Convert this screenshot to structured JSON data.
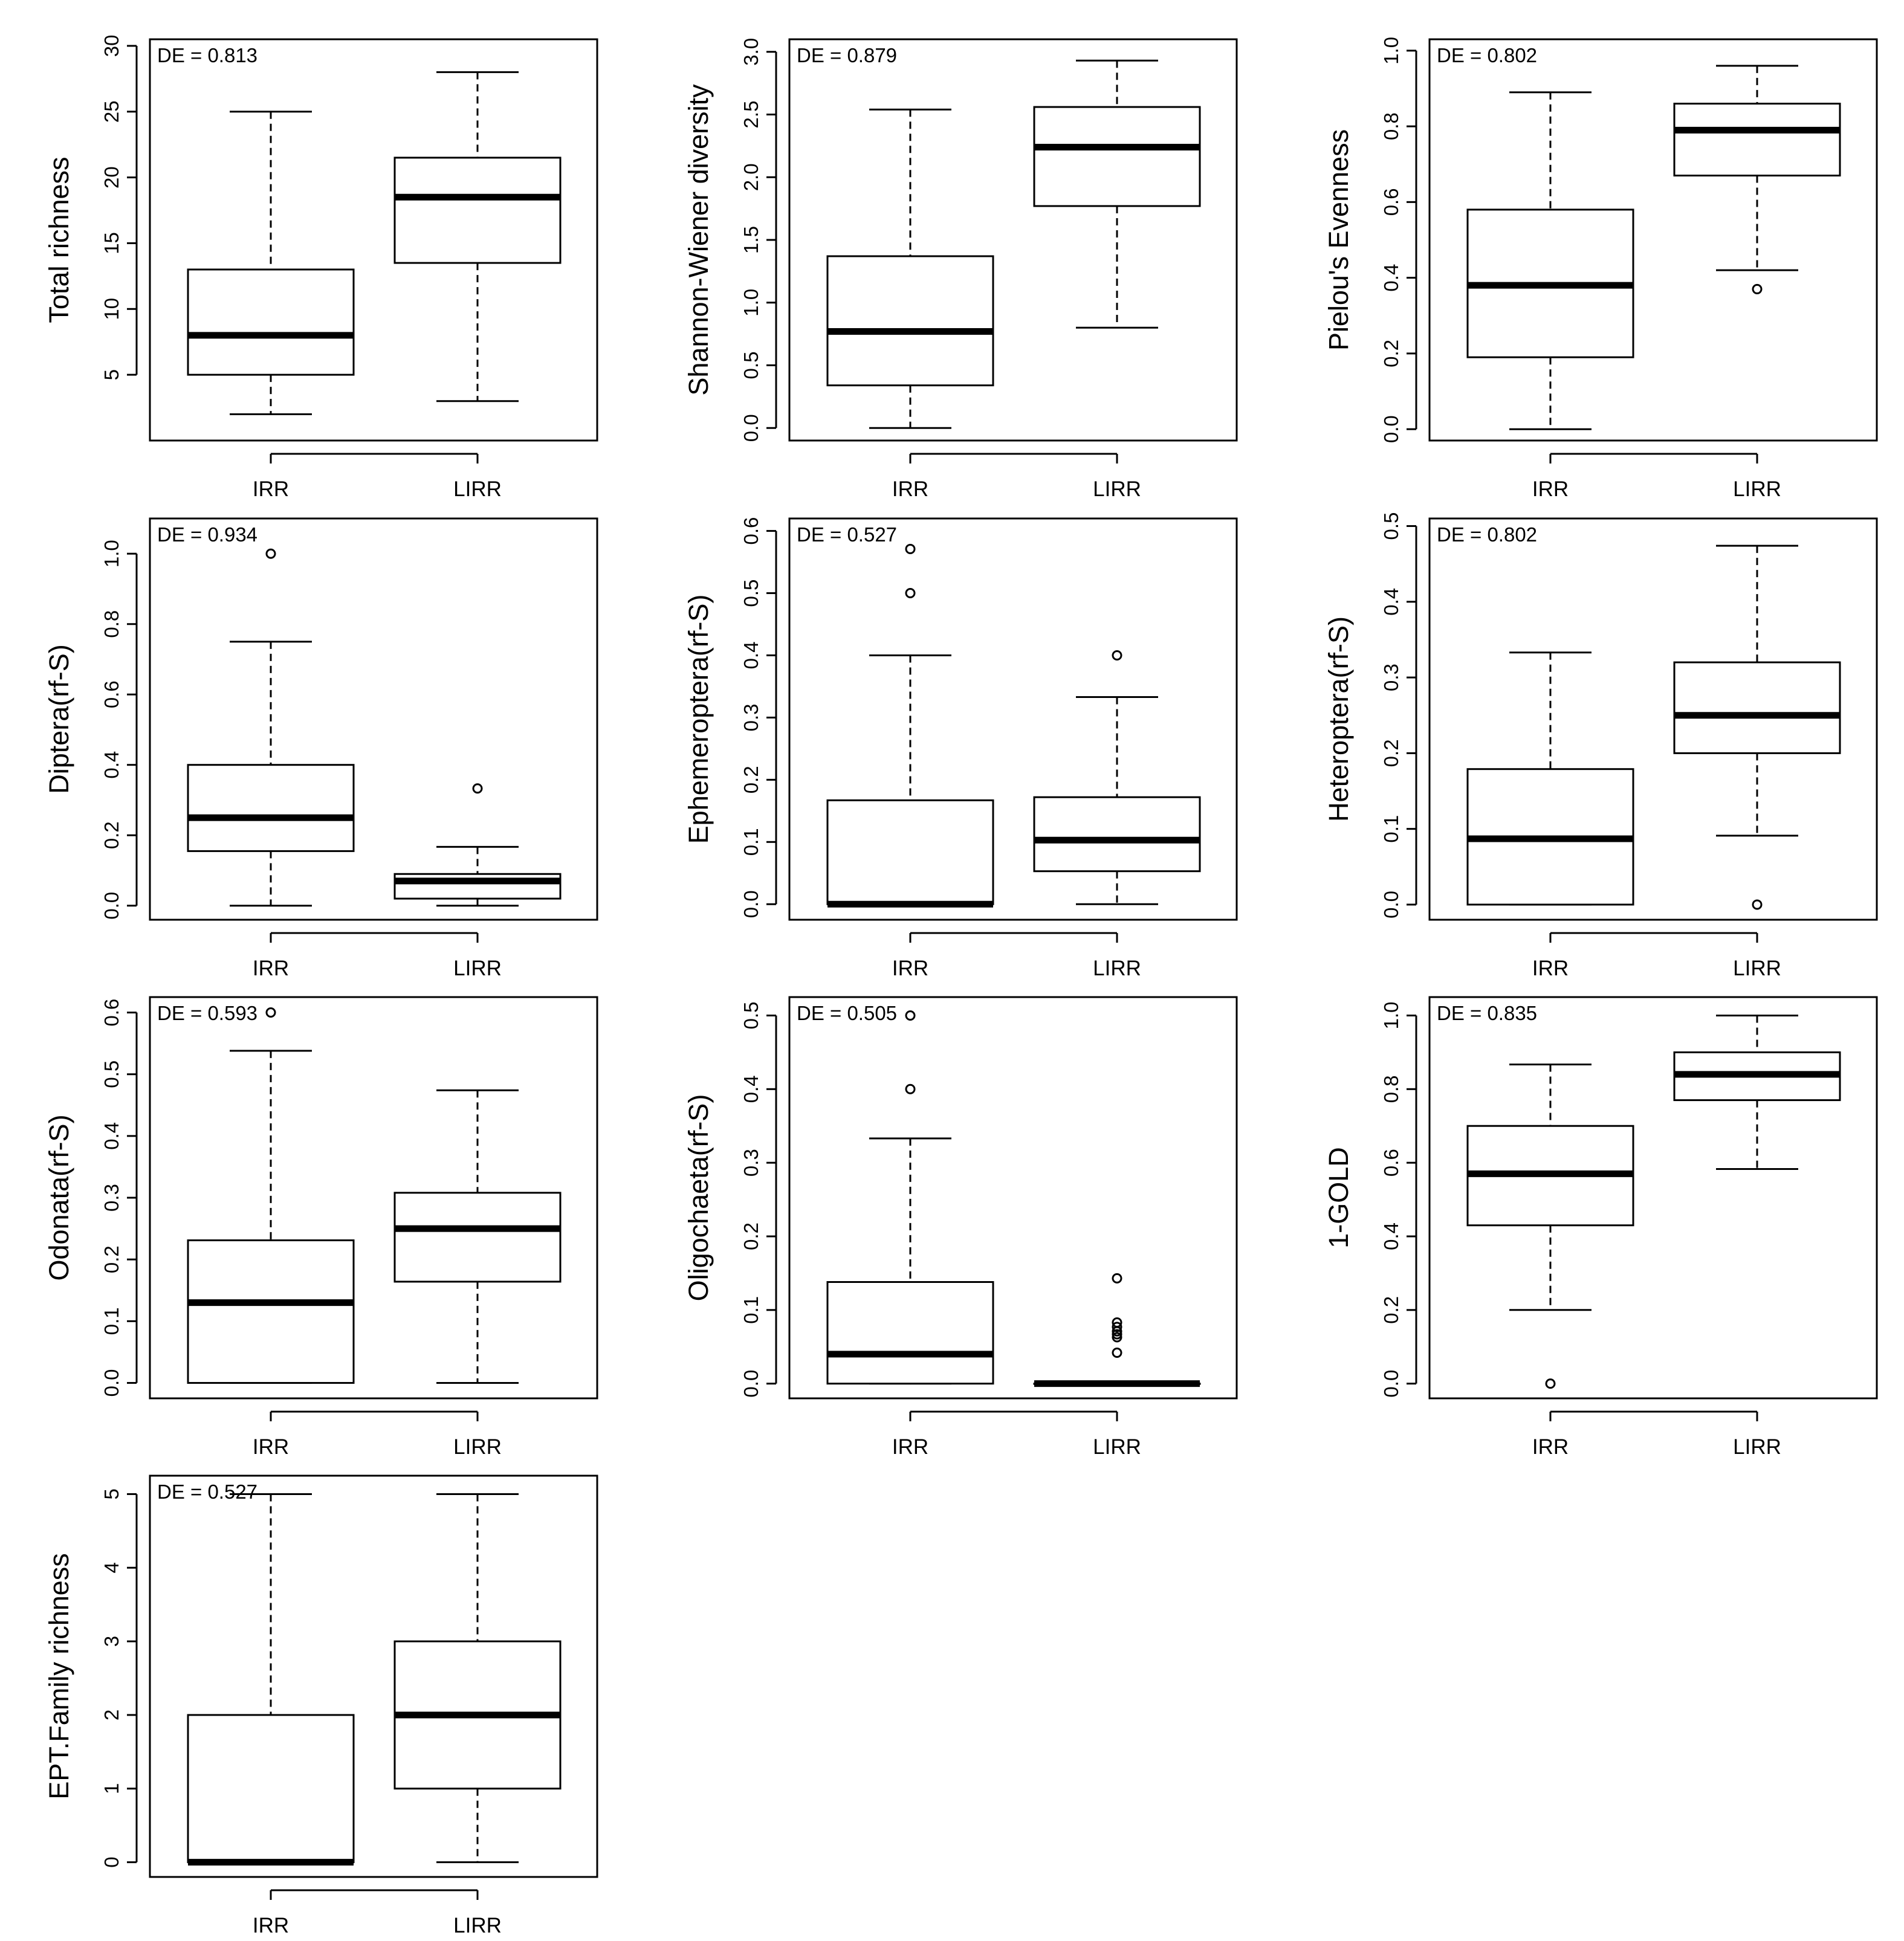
{
  "chart_data": [
    {
      "type": "boxplot",
      "title": "",
      "ylabel": "Total richness",
      "annotation": "DE = 0.813",
      "categories": [
        "IRR",
        "LIRR"
      ],
      "ylim": [
        0,
        30.5
      ],
      "yticks": [
        5,
        10,
        15,
        20,
        25,
        30
      ],
      "ytick_labels": [
        "5",
        "10",
        "15",
        "20",
        "25",
        "30"
      ],
      "boxes": [
        {
          "name": "IRR",
          "whislo": 2,
          "q1": 5,
          "med": 8,
          "q3": 13,
          "whishi": 25,
          "fliers": []
        },
        {
          "name": "LIRR",
          "whislo": 3,
          "q1": 13.5,
          "med": 18.5,
          "q3": 21.5,
          "whishi": 28,
          "fliers": []
        }
      ]
    },
    {
      "type": "boxplot",
      "title": "",
      "ylabel": "Shannon-Wiener diversity",
      "annotation": "DE = 0.879",
      "categories": [
        "IRR",
        "LIRR"
      ],
      "ylim": [
        -0.1,
        3.1
      ],
      "yticks": [
        0,
        0.5,
        1,
        1.5,
        2,
        2.5,
        3
      ],
      "ytick_labels": [
        "0.0",
        "0.5",
        "1.0",
        "1.5",
        "2.0",
        "2.5",
        "3.0"
      ],
      "boxes": [
        {
          "name": "IRR",
          "whislo": 0,
          "q1": 0.34,
          "med": 0.77,
          "q3": 1.37,
          "whishi": 2.54,
          "fliers": []
        },
        {
          "name": "LIRR",
          "whislo": 0.8,
          "q1": 1.77,
          "med": 2.24,
          "q3": 2.56,
          "whishi": 2.93,
          "fliers": []
        }
      ]
    },
    {
      "type": "boxplot",
      "title": "",
      "ylabel": "Pielou's Evenness",
      "annotation": "DE = 0.802",
      "categories": [
        "IRR",
        "LIRR"
      ],
      "ylim": [
        -0.03,
        1.03
      ],
      "yticks": [
        0,
        0.2,
        0.4,
        0.6,
        0.8,
        1
      ],
      "ytick_labels": [
        "0.0",
        "0.2",
        "0.4",
        "0.6",
        "0.8",
        "1.0"
      ],
      "boxes": [
        {
          "name": "IRR",
          "whislo": 0,
          "q1": 0.19,
          "med": 0.38,
          "q3": 0.58,
          "whishi": 0.89,
          "fliers": []
        },
        {
          "name": "LIRR",
          "whislo": 0.42,
          "q1": 0.67,
          "med": 0.79,
          "q3": 0.86,
          "whishi": 0.96,
          "fliers": [
            0.37
          ]
        }
      ]
    },
    {
      "type": "boxplot",
      "title": "",
      "ylabel": "Diptera(rf-S)",
      "annotation": "DE = 0.934",
      "categories": [
        "IRR",
        "LIRR"
      ],
      "ylim": [
        -0.04,
        1.1
      ],
      "yticks": [
        0,
        0.2,
        0.4,
        0.6,
        0.8,
        1
      ],
      "ytick_labels": [
        "0.0",
        "0.2",
        "0.4",
        "0.6",
        "0.8",
        "1.0"
      ],
      "boxes": [
        {
          "name": "IRR",
          "whislo": 0,
          "q1": 0.155,
          "med": 0.25,
          "q3": 0.4,
          "whishi": 0.75,
          "fliers": [
            1.0
          ]
        },
        {
          "name": "LIRR",
          "whislo": 0,
          "q1": 0.02,
          "med": 0.07,
          "q3": 0.09,
          "whishi": 0.167,
          "fliers": [
            0.333
          ]
        }
      ]
    },
    {
      "type": "boxplot",
      "title": "",
      "ylabel": "Ephemeroptera(rf-S)",
      "annotation": "DE = 0.527",
      "categories": [
        "IRR",
        "LIRR"
      ],
      "ylim": [
        -0.025,
        0.62
      ],
      "yticks": [
        0,
        0.1,
        0.2,
        0.3,
        0.4,
        0.5,
        0.6
      ],
      "ytick_labels": [
        "0.0",
        "0.1",
        "0.2",
        "0.3",
        "0.4",
        "0.5",
        "0.6"
      ],
      "boxes": [
        {
          "name": "IRR",
          "whislo": 0,
          "q1": 0,
          "med": 0,
          "q3": 0.167,
          "whishi": 0.4,
          "fliers": [
            0.5,
            0.571
          ]
        },
        {
          "name": "LIRR",
          "whislo": 0,
          "q1": 0.053,
          "med": 0.103,
          "q3": 0.172,
          "whishi": 0.333,
          "fliers": [
            0.4
          ]
        }
      ]
    },
    {
      "type": "boxplot",
      "title": "",
      "ylabel": "Heteroptera(rf-S)",
      "annotation": "DE = 0.802",
      "categories": [
        "IRR",
        "LIRR"
      ],
      "ylim": [
        -0.02,
        0.51
      ],
      "yticks": [
        0,
        0.1,
        0.2,
        0.3,
        0.4,
        0.5
      ],
      "ytick_labels": [
        "0.0",
        "0.1",
        "0.2",
        "0.3",
        "0.4",
        "0.5"
      ],
      "boxes": [
        {
          "name": "IRR",
          "whislo": 0,
          "q1": 0,
          "med": 0.087,
          "q3": 0.179,
          "whishi": 0.333,
          "fliers": []
        },
        {
          "name": "LIRR",
          "whislo": 0.091,
          "q1": 0.2,
          "med": 0.25,
          "q3": 0.32,
          "whishi": 0.474,
          "fliers": [
            0
          ]
        }
      ]
    },
    {
      "type": "boxplot",
      "title": "",
      "ylabel": "Odonata(rf-S)",
      "annotation": "DE = 0.593",
      "categories": [
        "IRR",
        "LIRR"
      ],
      "ylim": [
        -0.025,
        0.625
      ],
      "yticks": [
        0,
        0.1,
        0.2,
        0.3,
        0.4,
        0.5,
        0.6
      ],
      "ytick_labels": [
        "0.0",
        "0.1",
        "0.2",
        "0.3",
        "0.4",
        "0.5",
        "0.6"
      ],
      "boxes": [
        {
          "name": "IRR",
          "whislo": 0,
          "q1": 0,
          "med": 0.13,
          "q3": 0.231,
          "whishi": 0.538,
          "fliers": [
            0.6
          ]
        },
        {
          "name": "LIRR",
          "whislo": 0,
          "q1": 0.164,
          "med": 0.25,
          "q3": 0.308,
          "whishi": 0.474,
          "fliers": []
        }
      ]
    },
    {
      "type": "boxplot",
      "title": "",
      "ylabel": "Oligochaeta(rf-S)",
      "annotation": "DE = 0.505",
      "categories": [
        "IRR",
        "LIRR"
      ],
      "ylim": [
        -0.02,
        0.525
      ],
      "yticks": [
        0,
        0.1,
        0.2,
        0.3,
        0.4,
        0.5
      ],
      "ytick_labels": [
        "0.0",
        "0.1",
        "0.2",
        "0.3",
        "0.4",
        "0.5"
      ],
      "boxes": [
        {
          "name": "IRR",
          "whislo": 0,
          "q1": 0,
          "med": 0.04,
          "q3": 0.138,
          "whishi": 0.333,
          "fliers": [
            0.4,
            0.5
          ]
        },
        {
          "name": "LIRR",
          "whislo": 0,
          "q1": 0,
          "med": 0,
          "q3": 0,
          "whishi": 0,
          "fliers": [
            0.042,
            0.063,
            0.067,
            0.071,
            0.077,
            0.083,
            0.143
          ]
        }
      ]
    },
    {
      "type": "boxplot",
      "title": "",
      "ylabel": "1-GOLD",
      "annotation": "DE = 0.835",
      "categories": [
        "IRR",
        "LIRR"
      ],
      "ylim": [
        -0.04,
        1.05
      ],
      "yticks": [
        0,
        0.2,
        0.4,
        0.6,
        0.8,
        1
      ],
      "ytick_labels": [
        "0.0",
        "0.2",
        "0.4",
        "0.6",
        "0.8",
        "1.0"
      ],
      "boxes": [
        {
          "name": "IRR",
          "whislo": 0.2,
          "q1": 0.43,
          "med": 0.57,
          "q3": 0.7,
          "whishi": 0.867,
          "fliers": [
            0
          ]
        },
        {
          "name": "LIRR",
          "whislo": 0.583,
          "q1": 0.77,
          "med": 0.84,
          "q3": 0.9,
          "whishi": 1.0,
          "fliers": []
        }
      ]
    },
    {
      "type": "boxplot",
      "title": "",
      "ylabel": "EPT.Family richness",
      "annotation": "DE = 0.527",
      "categories": [
        "IRR",
        "LIRR"
      ],
      "ylim": [
        -0.2,
        5.25
      ],
      "yticks": [
        0,
        1,
        2,
        3,
        4,
        5
      ],
      "ytick_labels": [
        "0",
        "1",
        "2",
        "3",
        "4",
        "5"
      ],
      "boxes": [
        {
          "name": "IRR",
          "whislo": 0,
          "q1": 0,
          "med": 0,
          "q3": 2,
          "whishi": 5,
          "fliers": []
        },
        {
          "name": "LIRR",
          "whislo": 0,
          "q1": 1,
          "med": 2,
          "q3": 3,
          "whishi": 5,
          "fliers": []
        }
      ]
    }
  ]
}
